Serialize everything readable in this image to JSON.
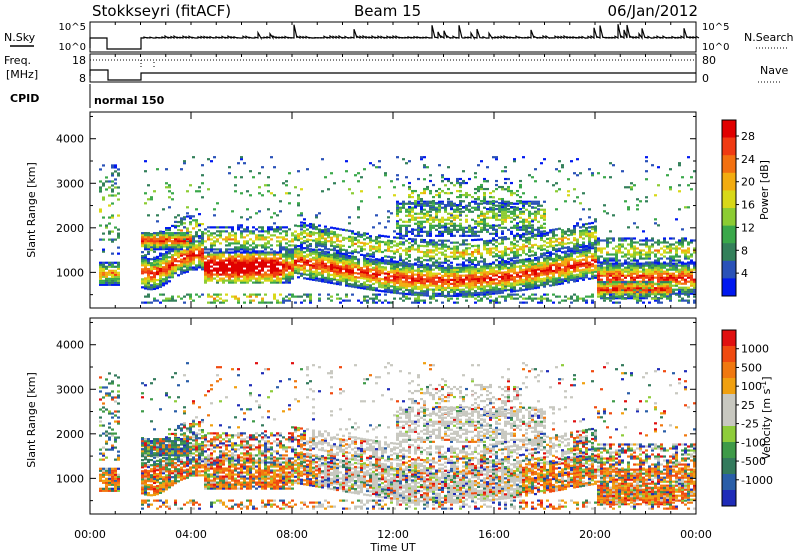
{
  "header": {
    "station": "Stokkseyri (fitACF)",
    "beam": "Beam 15",
    "date": "06/Jan/2012"
  },
  "summary_panels": {
    "nsky": {
      "label": "N.Sky",
      "tick_top": "10^5",
      "tick_bottom": "10^0"
    },
    "nsearch": {
      "label": "N.Search",
      "tick_top": "10^5",
      "tick_bottom": "10^0"
    },
    "freq": {
      "label_line1": "Freq.",
      "label_line2": "[MHz]",
      "tick_top": "18",
      "tick_bottom": "8"
    },
    "nave": {
      "label": "Nave",
      "tick_top": "80",
      "tick_bottom": "0"
    },
    "cpid": {
      "label": "CPID",
      "value": "normal 150"
    }
  },
  "chart_data": [
    {
      "type": "heatmap",
      "quantity": "power",
      "ylabel": "Slant Range [km]",
      "yticks": [
        "1000",
        "2000",
        "3000",
        "4000"
      ],
      "ylim": [
        200,
        4600
      ],
      "x": [
        "00:00",
        "04:00",
        "08:00",
        "12:00",
        "16:00",
        "20:00",
        "00:00"
      ],
      "colorbar": {
        "label": "Power [dB]",
        "ticks": [
          "4",
          "8",
          "12",
          "16",
          "20",
          "24",
          "28"
        ],
        "colors": [
          "#0018f0",
          "#2a52b8",
          "#33805a",
          "#3aa84a",
          "#8ccc33",
          "#d8d818",
          "#f3ac10",
          "#f37010",
          "#f03a12",
          "#e00000"
        ]
      }
    },
    {
      "type": "heatmap",
      "quantity": "velocity",
      "ylabel": "Slant Range [km]",
      "yticks": [
        "1000",
        "2000",
        "3000",
        "4000"
      ],
      "ylim": [
        200,
        4600
      ],
      "x": [
        "00:00",
        "04:00",
        "08:00",
        "12:00",
        "16:00",
        "20:00",
        "00:00"
      ],
      "xlabel": "Time UT",
      "colorbar": {
        "label": "Velocity [m s^-1]",
        "ticks": [
          "1000",
          "500",
          "100",
          "25",
          "-25",
          "-100",
          "-500",
          "-1000"
        ],
        "colors": [
          "#1f2cb8",
          "#2a5ea8",
          "#337a5c",
          "#3e9a48",
          "#8ecc3a",
          "#c8c8c0",
          "#c8c8c0",
          "#f0a010",
          "#f07810",
          "#f04a10",
          "#e01010"
        ]
      }
    }
  ]
}
